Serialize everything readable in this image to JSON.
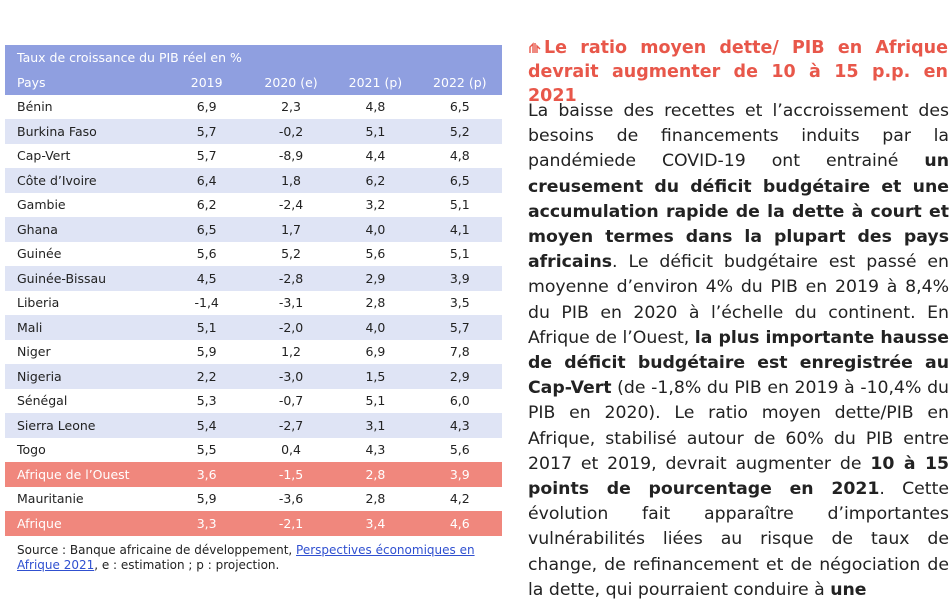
{
  "table": {
    "title": "Taux de croissance du PIB réel en %",
    "header": [
      "Pays",
      "2019",
      "2020 (e)",
      "2021 (p)",
      "2022 (p)"
    ],
    "rows": [
      [
        "Bénin",
        "6,9",
        "2,3",
        "4,8",
        "6,5"
      ],
      [
        "Burkina Faso",
        "5,7",
        "-0,2",
        "5,1",
        "5,2"
      ],
      [
        "Cap-Vert",
        "5,7",
        "-8,9",
        "4,4",
        "4,8"
      ],
      [
        "Côte d’Ivoire",
        "6,4",
        "1,8",
        "6,2",
        "6,5"
      ],
      [
        "Gambie",
        "6,2",
        "-2,4",
        "3,2",
        "5,1"
      ],
      [
        "Ghana",
        "6,5",
        "1,7",
        "4,0",
        "4,1"
      ],
      [
        "Guinée",
        "5,6",
        "5,2",
        "5,6",
        "5,1"
      ],
      [
        "Guinée-Bissau",
        "4,5",
        "-2,8",
        "2,9",
        "3,9"
      ],
      [
        "Liberia",
        "-1,4",
        "-3,1",
        "2,8",
        "3,5"
      ],
      [
        "Mali",
        "5,1",
        "-2,0",
        "4,0",
        "5,7"
      ],
      [
        "Niger",
        "5,9",
        "1,2",
        "6,9",
        "7,8"
      ],
      [
        "Nigeria",
        "2,2",
        "-3,0",
        "1,5",
        "2,9"
      ],
      [
        "Sénégal",
        "5,3",
        "-0,7",
        "5,1",
        "6,0"
      ],
      [
        "Sierra Leone",
        "5,4",
        "-2,7",
        "3,1",
        "4,3"
      ],
      [
        "Togo",
        "5,5",
        "0,4",
        "4,3",
        "5,6"
      ],
      [
        "Afrique de l’Ouest",
        "3,6",
        "-1,5",
        "2,8",
        "3,9"
      ],
      [
        "Mauritanie",
        "5,9",
        "-3,6",
        "2,8",
        "4,2"
      ],
      [
        "Afrique",
        "3,3",
        "-2,1",
        "3,4",
        "4,6"
      ]
    ],
    "source": [
      "Source : Banque africaine de développement, ",
      "Perspectives économiques en Afrique 2021",
      ", e : estimation ; p : projection."
    ]
  },
  "article": {
    "heading": "Le ratio moyen dette/ PIB en Afrique devrait augmenter de 10 à 15 p.p. en 2021",
    "paragraph": [
      {
        "text": "La baisse des recettes et l’accroissement des besoins de financements induits par la pandémiede COVID-19 ont entrainé ",
        "bold": false
      },
      {
        "text": "un creusement du déficit budgétaire et une accumulation rapide de la dette à court et moyen termes dans la plupart des pays africains",
        "bold": true
      },
      {
        "text": ". Le déficit budgétaire est passé en moyenne d’environ 4% du PIB en 2019 à 8,4% du PIB en 2020 à l’échelle du continent. En Afrique de l’Ouest, ",
        "bold": false
      },
      {
        "text": "la plus importante hausse de déficit budgétaire est enregistrée au Cap-Vert",
        "bold": true
      },
      {
        "text": " (de -1,8% du PIB en 2019 à -10,4% du PIB en 2020). Le ratio moyen dette/PIB en Afrique, stabilisé autour de 60% du PIB entre 2017 et 2019, devrait augmenter de ",
        "bold": false
      },
      {
        "text": "10 à 15 points de pourcentage en 2021",
        "bold": true
      },
      {
        "text": ". Cette évolution fait apparaître d’importantes vulnérabilités liées au risque de taux de change, de refinancement et de négociation de la dette, qui pourraient conduire à ",
        "bold": false
      },
      {
        "text": "une",
        "bold": true
      }
    ]
  }
}
